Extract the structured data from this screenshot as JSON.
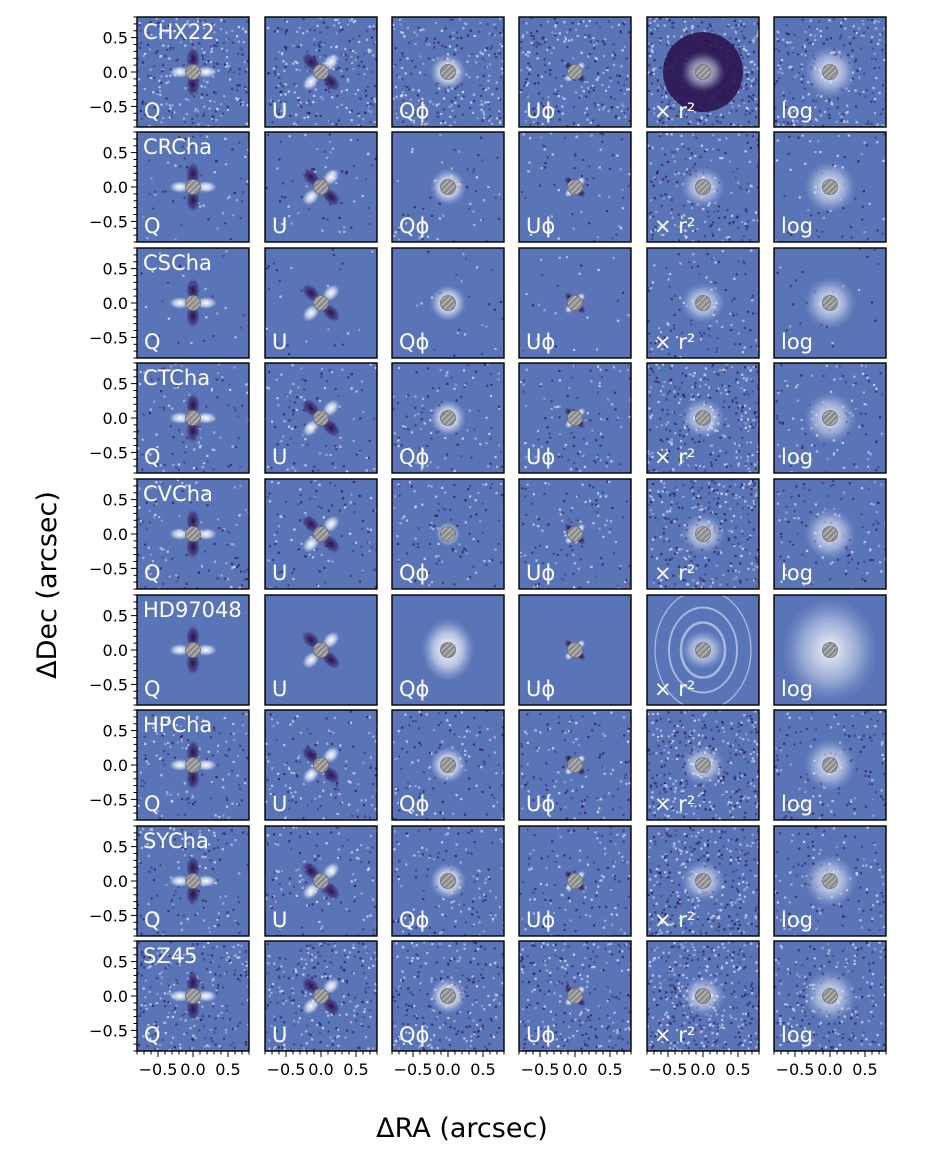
{
  "figure": {
    "xlabel": "ΔRA (arcsec)",
    "ylabel": "ΔDec (arcsec)"
  },
  "chart_data": {
    "type": "heatmap",
    "xlabel": "ΔRA (arcsec)",
    "ylabel": "ΔDec (arcsec)",
    "xlim": [
      -0.8,
      0.8
    ],
    "ylim": [
      -0.8,
      0.8
    ],
    "xticks": [
      -0.5,
      0.0,
      0.5
    ],
    "xtick_labels": [
      "−0.5",
      "0.0",
      "0.5"
    ],
    "yticks": [
      0.5,
      0.0,
      -0.5
    ],
    "ytick_labels": [
      "0.5",
      "0.0",
      "−0.5"
    ],
    "columns": [
      {
        "label": "Q",
        "kind": "Q"
      },
      {
        "label": "U",
        "kind": "U"
      },
      {
        "label": "Qϕ",
        "kind": "Qphi"
      },
      {
        "label": "Uϕ",
        "kind": "Uphi"
      },
      {
        "label": "× r²",
        "kind": "r2"
      },
      {
        "label": "log",
        "kind": "log"
      }
    ],
    "targets": [
      "CHX22",
      "CRCha",
      "CSCha",
      "CTCha",
      "CVCha",
      "HD97048",
      "HPCha",
      "SYCha",
      "SZ45"
    ],
    "colors": {
      "background": "#5a74b8",
      "bright": "#ffffff",
      "dark": "#2a0f4e",
      "mask": "#8c8c8c"
    },
    "grid": false,
    "coronagraph_mask": true
  }
}
